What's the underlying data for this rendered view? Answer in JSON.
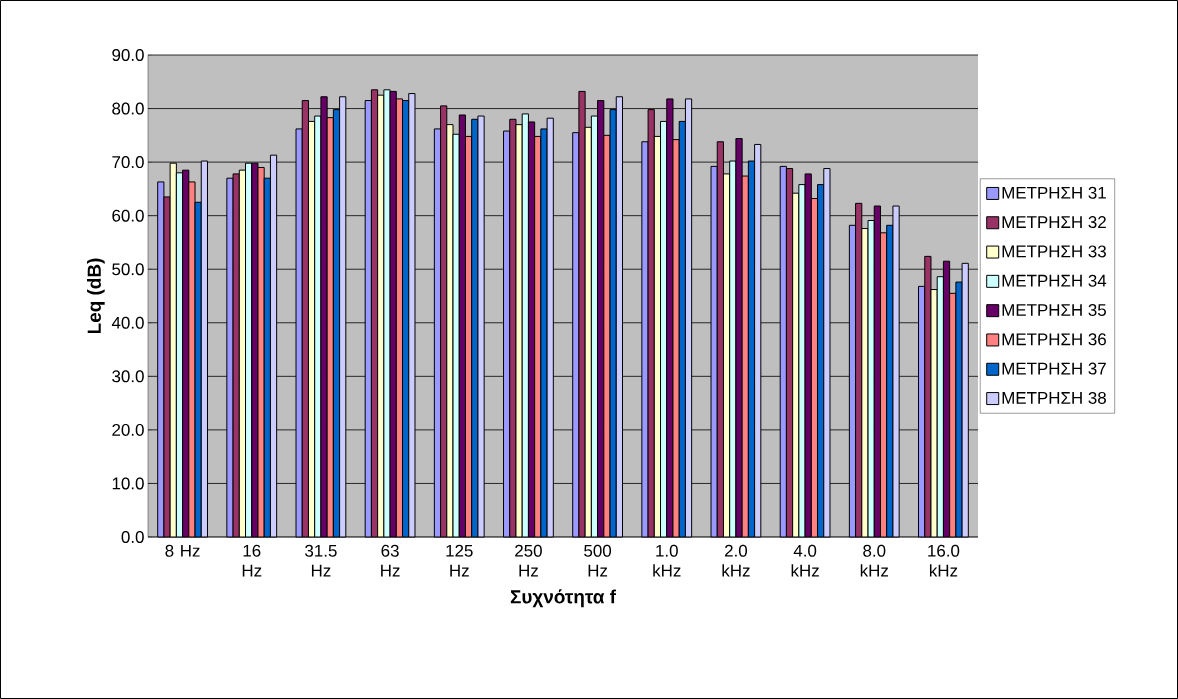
{
  "chart_data": {
    "type": "bar",
    "xlabel": "Συχνότητα f",
    "ylabel": "Leq (dB)",
    "categories": [
      "8 Hz",
      "16 Hz",
      "31.5 Hz",
      "63 Hz",
      "125 Hz",
      "250 Hz",
      "500 Hz",
      "1.0 kHz",
      "2.0 kHz",
      "4.0 kHz",
      "8.0 kHz",
      "16.0 kHz"
    ],
    "series": [
      {
        "name": "ΜΕΤΡΗΣΗ 31",
        "color": "#9999ff",
        "values": [
          66.3,
          67.0,
          76.2,
          81.5,
          76.2,
          75.8,
          75.5,
          73.8,
          69.2,
          69.2,
          58.2,
          46.8
        ]
      },
      {
        "name": "ΜΕΤΡΗΣΗ 32",
        "color": "#993366",
        "values": [
          63.5,
          67.8,
          81.5,
          83.5,
          80.5,
          78.0,
          83.2,
          79.8,
          73.8,
          68.8,
          62.3,
          52.4
        ]
      },
      {
        "name": "ΜΕΤΡΗΣΗ 33",
        "color": "#ffffcc",
        "values": [
          69.8,
          68.5,
          77.6,
          82.5,
          77.0,
          77.0,
          76.5,
          74.8,
          67.8,
          64.2,
          57.6,
          46.2
        ]
      },
      {
        "name": "ΜΕΤΡΗΣΗ 34",
        "color": "#ccffff",
        "values": [
          68.0,
          69.8,
          78.6,
          83.5,
          75.2,
          79.0,
          78.6,
          77.6,
          70.2,
          65.8,
          59.1,
          48.6
        ]
      },
      {
        "name": "ΜΕΤΡΗΣΗ 35",
        "color": "#660066",
        "values": [
          68.5,
          69.8,
          82.2,
          83.2,
          78.8,
          77.5,
          81.5,
          81.8,
          74.4,
          67.8,
          61.8,
          51.5
        ]
      },
      {
        "name": "ΜΕΤΡΗΣΗ 36",
        "color": "#ff8080",
        "values": [
          66.3,
          69.0,
          78.3,
          81.8,
          74.8,
          74.8,
          75.0,
          74.2,
          67.4,
          63.2,
          56.8,
          45.5
        ]
      },
      {
        "name": "ΜΕΤΡΗΣΗ 37",
        "color": "#0066cc",
        "values": [
          62.5,
          67.0,
          79.8,
          81.5,
          78.0,
          76.2,
          79.8,
          77.6,
          70.2,
          65.8,
          58.2,
          47.6
        ]
      },
      {
        "name": "ΜΕΤΡΗΣΗ 38",
        "color": "#ccccff",
        "values": [
          70.2,
          71.3,
          82.2,
          82.8,
          78.6,
          78.2,
          82.2,
          81.8,
          73.3,
          68.8,
          61.8,
          51.1
        ]
      }
    ],
    "ylim": [
      0,
      90
    ],
    "yticks": [
      {
        "value": 0,
        "label": "0.0"
      },
      {
        "value": 10,
        "label": "10.0"
      },
      {
        "value": 20,
        "label": "20.0"
      },
      {
        "value": 30,
        "label": "30.0"
      },
      {
        "value": 40,
        "label": "40.0"
      },
      {
        "value": 50,
        "label": "50.0"
      },
      {
        "value": 60,
        "label": "60.0"
      },
      {
        "value": 70,
        "label": "70.0"
      },
      {
        "value": 80,
        "label": "80.0"
      },
      {
        "value": 90,
        "label": "90.0"
      }
    ],
    "grid": "y",
    "legend": "right"
  }
}
